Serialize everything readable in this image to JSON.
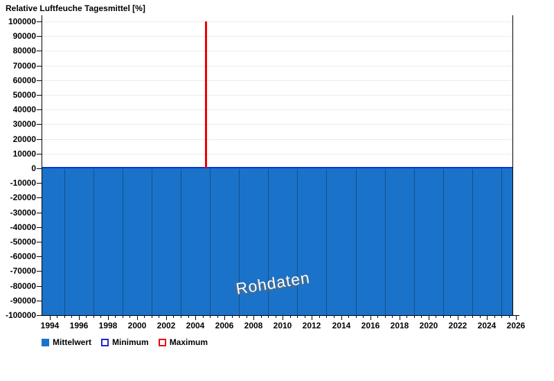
{
  "title": "Relative Luftfeuche Tagesmittel [%]",
  "watermark": "Rohdaten",
  "colors": {
    "bar_fill": "#1A73C8",
    "bar_separator": "#164F8C",
    "zero_line": "#0831D6",
    "maximum_line": "#EE0000",
    "minimum_line": "#2222CC",
    "grid": "#EBEBEB",
    "axis": "#000000",
    "background": "#FFFFFF"
  },
  "legend": [
    {
      "label": "Mittelwert",
      "swatch_fill": "#1A73C8",
      "swatch_border": "#1A73C8"
    },
    {
      "label": "Minimum",
      "swatch_fill": "#FFFFFF",
      "swatch_border": "#2222CC"
    },
    {
      "label": "Maximum",
      "swatch_fill": "#FFFFFF",
      "swatch_border": "#EE0000"
    }
  ],
  "chart_data": {
    "type": "bar",
    "title": "Relative Luftfeuche Tagesmittel [%]",
    "xlabel": "",
    "ylabel": "",
    "xlim": [
      1993.5,
      2026.2
    ],
    "ylim": [
      -100000,
      100000
    ],
    "x_ticks": [
      1994,
      1996,
      1998,
      2000,
      2002,
      2004,
      2006,
      2008,
      2010,
      2012,
      2014,
      2016,
      2018,
      2020,
      2022,
      2024,
      2026
    ],
    "x_minor_tick_step": 0.5,
    "y_ticks": [
      100000,
      90000,
      80000,
      70000,
      60000,
      50000,
      40000,
      30000,
      20000,
      10000,
      0,
      -10000,
      -20000,
      -30000,
      -40000,
      -50000,
      -60000,
      -70000,
      -80000,
      -90000,
      -100000
    ],
    "grid": "horizontal, above zero line only",
    "legend_position": "bottom-left",
    "watermark": "Rohdaten",
    "series": [
      {
        "name": "Mittelwert",
        "type": "bar",
        "color": "#1A73C8",
        "x_start": 1993.5,
        "x_end": 2025.8,
        "value": -100000,
        "clipped": true,
        "note": "solid bar block filling entire area from 0 down to -100000 across whole x range",
        "bar_boundary_years": [
          1995,
          1997,
          1999,
          2001,
          2003,
          2005,
          2007,
          2009,
          2011,
          2013,
          2015,
          2017,
          2019,
          2021,
          2023,
          2025
        ]
      },
      {
        "name": "Minimum",
        "type": "line",
        "color": "#2222CC",
        "visible_points": []
      },
      {
        "name": "Maximum",
        "type": "line",
        "color": "#EE0000",
        "spike": {
          "x": 2004.7,
          "y_top": 100000,
          "y_bottom": 0
        },
        "clipped": true,
        "note": "single vertical red spike reaching top of axis"
      }
    ]
  }
}
